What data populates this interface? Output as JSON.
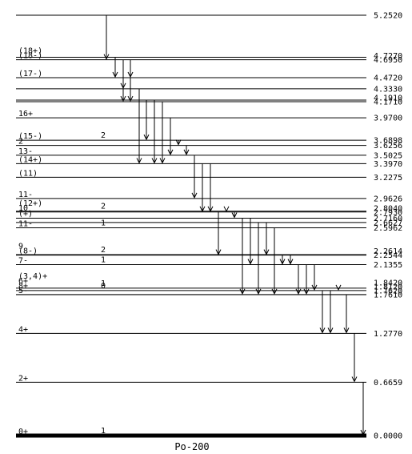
{
  "nucleus": "Po-200",
  "levels": [
    {
      "energy": "5.2520",
      "spin": ""
    },
    {
      "energy": "4.7270",
      "spin": "(18+)"
    },
    {
      "energy": "4.6950",
      "spin": "(18-)"
    },
    {
      "energy": "4.4720",
      "spin": "(17-)"
    },
    {
      "energy": "4.3330",
      "spin": ""
    },
    {
      "energy": "4.1910",
      "spin": ""
    },
    {
      "energy": "4.1710",
      "spin": ""
    },
    {
      "energy": "3.9700",
      "spin": "16+"
    },
    {
      "energy": "3.6898",
      "spin": "(15-)",
      "k": "2"
    },
    {
      "energy": "3.6256",
      "spin": "2"
    },
    {
      "energy": "3.5025",
      "spin": "13-"
    },
    {
      "energy": "3.3970",
      "spin": "(14+)"
    },
    {
      "energy": "3.2275",
      "spin": "(11)"
    },
    {
      "energy": "2.9626",
      "spin": "11-"
    },
    {
      "energy": "2.8040",
      "spin": "(12+)",
      "k": "2"
    },
    {
      "energy": "2.7930",
      "spin": "10"
    },
    {
      "energy": "2.7160",
      "spin": "(+)"
    },
    {
      "energy": "2.6627",
      "spin": ""
    },
    {
      "energy": "2.5962",
      "spin": "11-",
      "k": "1"
    },
    {
      "energy": "2.2614",
      "spin": "9",
      "k": "2"
    },
    {
      "energy": "2.2544",
      "spin": "(8-)"
    },
    {
      "energy": "2.1355",
      "spin": "7-",
      "k": "1"
    },
    {
      "energy": "1.8420",
      "spin": "(3,4)+",
      "k": "1"
    },
    {
      "energy": "1.8120",
      "spin": "6+",
      "k": "0"
    },
    {
      "energy": "1.7620",
      "spin": "8+"
    },
    {
      "energy": "1.7610",
      "spin": "5-"
    },
    {
      "energy": "1.2770",
      "spin": "4+"
    },
    {
      "energy": "0.6659",
      "spin": "2+"
    },
    {
      "energy": "0.0000",
      "spin": "0+",
      "k": "1"
    }
  ]
}
